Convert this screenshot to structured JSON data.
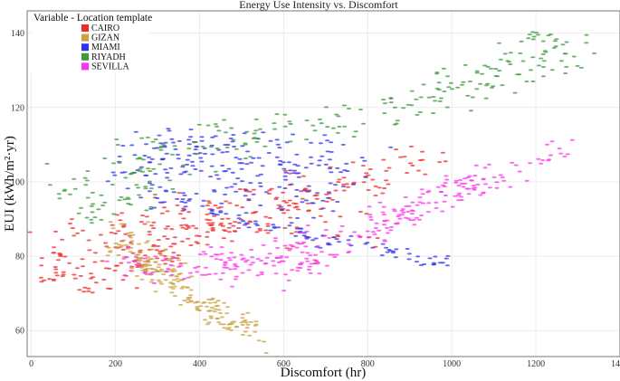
{
  "chart_data": {
    "type": "scatter",
    "title": "Energy Use Intensity vs. Discomfort",
    "xlabel": "Discomfort (hr)",
    "ylabel": "EUI (kWh/m²·yr)",
    "xlim": [
      -10,
      1400
    ],
    "ylim": [
      53,
      146
    ],
    "xticks": [
      0,
      200,
      400,
      600,
      800,
      1000,
      1200,
      1400
    ],
    "yticks": [
      60,
      80,
      100,
      120,
      140
    ],
    "grid": true,
    "legend": {
      "title": "Variable - Location template",
      "placement": "top-left",
      "entries": [
        "CAIRO",
        "GIZAN",
        "MIAMI",
        "RIYADH",
        "SEVILLA"
      ]
    },
    "series": [
      {
        "name": "CAIRO",
        "color": "#f0292b",
        "clusters": [
          {
            "points": [
              [
                45,
                79
              ],
              [
                70,
                74
              ],
              [
                120,
                73
              ],
              [
                180,
                76
              ],
              [
                240,
                77
              ],
              [
                300,
                80
              ],
              [
                360,
                84
              ],
              [
                420,
                88
              ],
              [
                500,
                91
              ],
              [
                600,
                94
              ],
              [
                700,
                96
              ],
              [
                800,
                100
              ],
              [
                900,
                105
              ],
              [
                980,
                108
              ]
            ],
            "spread_x": 22,
            "spread_y": 2.4,
            "n": 170
          },
          {
            "points": [
              [
                60,
                84
              ],
              [
                140,
                86
              ],
              [
                250,
                90
              ],
              [
                400,
                93
              ],
              [
                550,
                96
              ],
              [
                700,
                98
              ],
              [
                850,
                100
              ]
            ],
            "spread_x": 30,
            "spread_y": 3.2,
            "n": 90
          },
          {
            "points": [
              [
                80,
                77
              ],
              [
                180,
                80
              ],
              [
                300,
                86
              ],
              [
                420,
                90
              ],
              [
                560,
                88
              ],
              [
                700,
                87
              ],
              [
                800,
                85
              ]
            ],
            "spread_x": 28,
            "spread_y": 3.0,
            "n": 80
          }
        ]
      },
      {
        "name": "GIZAN",
        "color": "#c9a341",
        "clusters": [
          {
            "points": [
              [
                180,
                84
              ],
              [
                230,
                80
              ],
              [
                280,
                77
              ],
              [
                330,
                73
              ],
              [
                380,
                69
              ],
              [
                430,
                66
              ],
              [
                480,
                63
              ],
              [
                540,
                60
              ]
            ],
            "spread_x": 15,
            "spread_y": 1.6,
            "n": 80
          },
          {
            "points": [
              [
                250,
                82
              ],
              [
                290,
                77
              ],
              [
                340,
                72
              ],
              [
                390,
                67
              ],
              [
                440,
                63
              ],
              [
                490,
                60
              ],
              [
                540,
                57
              ]
            ],
            "spread_x": 12,
            "spread_y": 1.4,
            "n": 60
          },
          {
            "points": [
              [
                190,
                87
              ],
              [
                230,
                84
              ],
              [
                270,
                80
              ],
              [
                320,
                77
              ],
              [
                360,
                74
              ]
            ],
            "spread_x": 18,
            "spread_y": 3.5,
            "n": 70
          }
        ]
      },
      {
        "name": "MIAMI",
        "color": "#3333ee",
        "clusters": [
          {
            "points": [
              [
                220,
                105
              ],
              [
                300,
                109
              ],
              [
                380,
                110
              ],
              [
                450,
                108
              ],
              [
                520,
                106
              ],
              [
                600,
                105
              ],
              [
                700,
                107
              ],
              [
                800,
                106
              ]
            ],
            "spread_x": 30,
            "spread_y": 3.5,
            "n": 140
          },
          {
            "points": [
              [
                300,
                97
              ],
              [
                400,
                93
              ],
              [
                500,
                90
              ],
              [
                600,
                87
              ],
              [
                700,
                85
              ],
              [
                800,
                83
              ],
              [
                900,
                80
              ],
              [
                990,
                78
              ]
            ],
            "spread_x": 14,
            "spread_y": 1.0,
            "n": 90
          },
          {
            "points": [
              [
                220,
                99
              ],
              [
                320,
                100
              ],
              [
                420,
                99
              ],
              [
                520,
                98
              ],
              [
                620,
                97
              ],
              [
                720,
                95
              ]
            ],
            "spread_x": 32,
            "spread_y": 3.5,
            "n": 90
          }
        ]
      },
      {
        "name": "RIYADH",
        "color": "#3d9b3d",
        "clusters": [
          {
            "points": [
              [
                90,
                97
              ],
              [
                150,
                100
              ],
              [
                230,
                104
              ],
              [
                300,
                108
              ],
              [
                400,
                110
              ],
              [
                500,
                112
              ],
              [
                600,
                113
              ],
              [
                700,
                115
              ],
              [
                800,
                118
              ],
              [
                900,
                121
              ],
              [
                1000,
                124
              ],
              [
                1100,
                128
              ],
              [
                1200,
                132
              ],
              [
                1300,
                134
              ]
            ],
            "spread_x": 30,
            "spread_y": 3.0,
            "n": 180
          },
          {
            "points": [
              [
                1000,
                125
              ],
              [
                1100,
                131
              ],
              [
                1200,
                137
              ],
              [
                1250,
                139
              ]
            ],
            "spread_x": 22,
            "spread_y": 2.5,
            "n": 40
          },
          {
            "points": [
              [
                120,
                92
              ],
              [
                220,
                96
              ],
              [
                330,
                102
              ]
            ],
            "spread_x": 28,
            "spread_y": 2.8,
            "n": 40
          }
        ]
      },
      {
        "name": "SEVILLA",
        "color": "#ff33ee",
        "clusters": [
          {
            "points": [
              [
                400,
                80
              ],
              [
                500,
                78
              ],
              [
                600,
                80
              ],
              [
                700,
                83
              ],
              [
                800,
                87
              ],
              [
                900,
                91
              ],
              [
                1000,
                96
              ],
              [
                1100,
                100
              ],
              [
                1200,
                105
              ],
              [
                1280,
                110
              ]
            ],
            "spread_x": 24,
            "spread_y": 2.4,
            "n": 170
          },
          {
            "points": [
              [
                220,
                79
              ],
              [
                320,
                77
              ],
              [
                420,
                76
              ],
              [
                520,
                76
              ],
              [
                620,
                78
              ],
              [
                720,
                79
              ]
            ],
            "spread_x": 35,
            "spread_y": 2.2,
            "n": 80
          },
          {
            "points": [
              [
                800,
                89
              ],
              [
                900,
                94
              ],
              [
                1000,
                99
              ],
              [
                1100,
                102
              ]
            ],
            "spread_x": 20,
            "spread_y": 1.8,
            "n": 50
          }
        ]
      }
    ]
  }
}
